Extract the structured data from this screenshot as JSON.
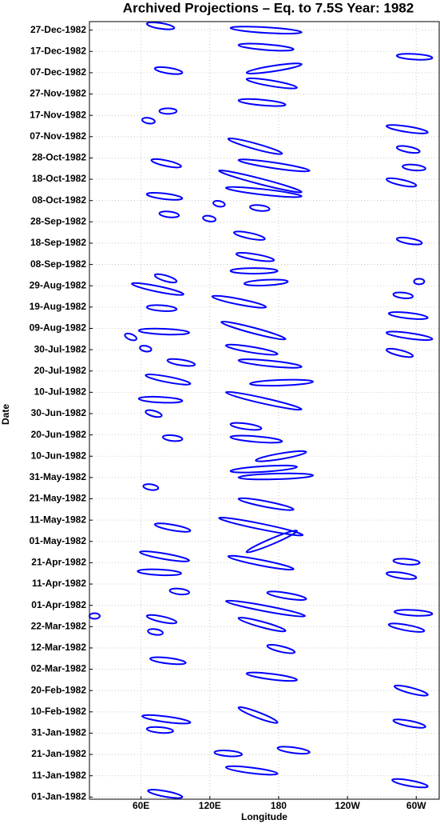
{
  "chart_data": {
    "type": "contour",
    "title": "Archived Projections – Eq. to 7.5S Year: 1982",
    "xlabel": "Longitude",
    "ylabel": "Date",
    "color": "#0000ff",
    "grid": true,
    "xlim": [
      15,
      320
    ],
    "xticks": [
      {
        "value": 60,
        "label": "60E"
      },
      {
        "value": 120,
        "label": "120E"
      },
      180,
      {
        "value": 240,
        "label": "120W"
      },
      {
        "value": 300,
        "label": "60W"
      }
    ],
    "ylim": [
      -1,
      364
    ],
    "yticks": [
      {
        "value": 0,
        "label": "01-Jan-1982"
      },
      {
        "value": 10,
        "label": "11-Jan-1982"
      },
      {
        "value": 20,
        "label": "21-Jan-1982"
      },
      {
        "value": 30,
        "label": "31-Jan-1982"
      },
      {
        "value": 40,
        "label": "10-Feb-1982"
      },
      {
        "value": 50,
        "label": "20-Feb-1982"
      },
      {
        "value": 60,
        "label": "02-Mar-1982"
      },
      {
        "value": 70,
        "label": "12-Mar-1982"
      },
      {
        "value": 80,
        "label": "22-Mar-1982"
      },
      {
        "value": 90,
        "label": "01-Apr-1982"
      },
      {
        "value": 100,
        "label": "11-Apr-1982"
      },
      {
        "value": 110,
        "label": "21-Apr-1982"
      },
      {
        "value": 120,
        "label": "01-May-1982"
      },
      {
        "value": 130,
        "label": "11-May-1982"
      },
      {
        "value": 140,
        "label": "21-May-1982"
      },
      {
        "value": 150,
        "label": "31-May-1982"
      },
      {
        "value": 160,
        "label": "10-Jun-1982"
      },
      {
        "value": 170,
        "label": "20-Jun-1982"
      },
      {
        "value": 180,
        "label": "30-Jun-1982"
      },
      {
        "value": 190,
        "label": "10-Jul-1982"
      },
      {
        "value": 200,
        "label": "20-Jul-1982"
      },
      {
        "value": 210,
        "label": "30-Jul-1982"
      },
      {
        "value": 220,
        "label": "09-Aug-1982"
      },
      {
        "value": 230,
        "label": "19-Aug-1982"
      },
      {
        "value": 240,
        "label": "29-Aug-1982"
      },
      {
        "value": 250,
        "label": "08-Sep-1982"
      },
      {
        "value": 260,
        "label": "18-Sep-1982"
      },
      {
        "value": 270,
        "label": "28-Sep-1982"
      },
      {
        "value": 280,
        "label": "08-Oct-1982"
      },
      {
        "value": 290,
        "label": "18-Oct-1982"
      },
      {
        "value": 300,
        "label": "28-Oct-1982"
      },
      {
        "value": 310,
        "label": "07-Nov-1982"
      },
      {
        "value": 320,
        "label": "17-Nov-1982"
      },
      {
        "value": 330,
        "label": "27-Nov-1982"
      },
      {
        "value": 340,
        "label": "07-Dec-1982"
      },
      {
        "value": 350,
        "label": "17-Dec-1982"
      },
      {
        "value": 360,
        "label": "27-Dec-1982"
      }
    ],
    "contours": [
      {
        "x0": 65,
        "y0": 363,
        "x1": 89,
        "y1": 361
      },
      {
        "x0": 138,
        "y0": 361,
        "x1": 200,
        "y1": 359
      },
      {
        "x0": 145,
        "y0": 353,
        "x1": 193,
        "y1": 351
      },
      {
        "x0": 283,
        "y0": 348,
        "x1": 314,
        "y1": 347
      },
      {
        "x0": 72,
        "y0": 342,
        "x1": 96,
        "y1": 340
      },
      {
        "x0": 152,
        "y0": 340,
        "x1": 200,
        "y1": 344
      },
      {
        "x0": 152,
        "y0": 337,
        "x1": 196,
        "y1": 333
      },
      {
        "x0": 145,
        "y0": 327,
        "x1": 186,
        "y1": 325
      },
      {
        "x0": 76,
        "y0": 322,
        "x1": 91,
        "y1": 322
      },
      {
        "x0": 61,
        "y0": 318,
        "x1": 72,
        "y1": 317
      },
      {
        "x0": 274,
        "y0": 315,
        "x1": 310,
        "y1": 312
      },
      {
        "x0": 136,
        "y0": 309,
        "x1": 183,
        "y1": 302
      },
      {
        "x0": 283,
        "y0": 305,
        "x1": 303,
        "y1": 303
      },
      {
        "x0": 69,
        "y0": 299,
        "x1": 95,
        "y1": 296
      },
      {
        "x0": 145,
        "y0": 299,
        "x1": 207,
        "y1": 294
      },
      {
        "x0": 288,
        "y0": 296,
        "x1": 308,
        "y1": 295
      },
      {
        "x0": 128,
        "y0": 294,
        "x1": 200,
        "y1": 284
      },
      {
        "x0": 274,
        "y0": 290,
        "x1": 300,
        "y1": 287
      },
      {
        "x0": 134,
        "y0": 286,
        "x1": 200,
        "y1": 282
      },
      {
        "x0": 65,
        "y0": 283,
        "x1": 96,
        "y1": 281
      },
      {
        "x0": 123,
        "y0": 279,
        "x1": 133,
        "y1": 278
      },
      {
        "x0": 155,
        "y0": 277,
        "x1": 172,
        "y1": 276
      },
      {
        "x0": 76,
        "y0": 274,
        "x1": 93,
        "y1": 273
      },
      {
        "x0": 114,
        "y0": 272,
        "x1": 125,
        "y1": 271
      },
      {
        "x0": 141,
        "y0": 265,
        "x1": 168,
        "y1": 262
      },
      {
        "x0": 283,
        "y0": 262,
        "x1": 305,
        "y1": 260
      },
      {
        "x0": 143,
        "y0": 255,
        "x1": 176,
        "y1": 252
      },
      {
        "x0": 138,
        "y0": 247,
        "x1": 179,
        "y1": 247
      },
      {
        "x0": 72,
        "y0": 245,
        "x1": 91,
        "y1": 242
      },
      {
        "x0": 52,
        "y0": 241,
        "x1": 97,
        "y1": 236
      },
      {
        "x0": 150,
        "y0": 241,
        "x1": 188,
        "y1": 242
      },
      {
        "x0": 298,
        "y0": 242,
        "x1": 307,
        "y1": 242
      },
      {
        "x0": 122,
        "y0": 235,
        "x1": 169,
        "y1": 230
      },
      {
        "x0": 280,
        "y0": 236,
        "x1": 297,
        "y1": 235
      },
      {
        "x0": 65,
        "y0": 230,
        "x1": 91,
        "y1": 229
      },
      {
        "x0": 276,
        "y0": 227,
        "x1": 310,
        "y1": 225
      },
      {
        "x0": 130,
        "y0": 223,
        "x1": 186,
        "y1": 215
      },
      {
        "x0": 58,
        "y0": 219,
        "x1": 102,
        "y1": 218
      },
      {
        "x0": 274,
        "y0": 218,
        "x1": 314,
        "y1": 215
      },
      {
        "x0": 46,
        "y0": 217,
        "x1": 56,
        "y1": 215
      },
      {
        "x0": 134,
        "y0": 212,
        "x1": 179,
        "y1": 208
      },
      {
        "x0": 59,
        "y0": 211,
        "x1": 69,
        "y1": 210
      },
      {
        "x0": 274,
        "y0": 210,
        "x1": 297,
        "y1": 207
      },
      {
        "x0": 145,
        "y0": 205,
        "x1": 200,
        "y1": 202
      },
      {
        "x0": 83,
        "y0": 205,
        "x1": 107,
        "y1": 203
      },
      {
        "x0": 64,
        "y0": 198,
        "x1": 103,
        "y1": 194
      },
      {
        "x0": 134,
        "y0": 190,
        "x1": 200,
        "y1": 182
      },
      {
        "x0": 155,
        "y0": 194,
        "x1": 210,
        "y1": 195
      },
      {
        "x0": 58,
        "y0": 187,
        "x1": 96,
        "y1": 186
      },
      {
        "x0": 64,
        "y0": 181,
        "x1": 78,
        "y1": 179
      },
      {
        "x0": 138,
        "y0": 175,
        "x1": 165,
        "y1": 173
      },
      {
        "x0": 138,
        "y0": 169,
        "x1": 183,
        "y1": 167
      },
      {
        "x0": 79,
        "y0": 169,
        "x1": 96,
        "y1": 168
      },
      {
        "x0": 160,
        "y0": 158,
        "x1": 204,
        "y1": 162
      },
      {
        "x0": 138,
        "y0": 153,
        "x1": 196,
        "y1": 155
      },
      {
        "x0": 145,
        "y0": 150,
        "x1": 210,
        "y1": 151
      },
      {
        "x0": 145,
        "y0": 140,
        "x1": 193,
        "y1": 135
      },
      {
        "x0": 62,
        "y0": 146,
        "x1": 75,
        "y1": 145
      },
      {
        "x0": 128,
        "y0": 131,
        "x1": 201,
        "y1": 123
      },
      {
        "x0": 72,
        "y0": 128,
        "x1": 103,
        "y1": 125
      },
      {
        "x0": 152,
        "y0": 115,
        "x1": 196,
        "y1": 125
      },
      {
        "x0": 59,
        "y0": 115,
        "x1": 102,
        "y1": 111
      },
      {
        "x0": 136,
        "y0": 113,
        "x1": 193,
        "y1": 107
      },
      {
        "x0": 57,
        "y0": 106,
        "x1": 95,
        "y1": 105
      },
      {
        "x0": 280,
        "y0": 111,
        "x1": 303,
        "y1": 110
      },
      {
        "x0": 274,
        "y0": 105,
        "x1": 300,
        "y1": 103
      },
      {
        "x0": 85,
        "y0": 97,
        "x1": 102,
        "y1": 96
      },
      {
        "x0": 170,
        "y0": 96,
        "x1": 204,
        "y1": 93
      },
      {
        "x0": 134,
        "y0": 92,
        "x1": 203,
        "y1": 85
      },
      {
        "x0": 65,
        "y0": 85,
        "x1": 91,
        "y1": 82
      },
      {
        "x0": 281,
        "y0": 87,
        "x1": 314,
        "y1": 86
      },
      {
        "x0": 145,
        "y0": 84,
        "x1": 186,
        "y1": 78
      },
      {
        "x0": 276,
        "y0": 81,
        "x1": 307,
        "y1": 78
      },
      {
        "x0": 66,
        "y0": 78,
        "x1": 79,
        "y1": 77
      },
      {
        "x0": 170,
        "y0": 71,
        "x1": 194,
        "y1": 68
      },
      {
        "x0": 68,
        "y0": 65,
        "x1": 99,
        "y1": 63
      },
      {
        "x0": 152,
        "y0": 58,
        "x1": 196,
        "y1": 55
      },
      {
        "x0": 281,
        "y0": 52,
        "x1": 310,
        "y1": 48
      },
      {
        "x0": 145,
        "y0": 42,
        "x1": 179,
        "y1": 35
      },
      {
        "x0": 280,
        "y0": 36,
        "x1": 308,
        "y1": 33
      },
      {
        "x0": 61,
        "y0": 38,
        "x1": 103,
        "y1": 35
      },
      {
        "x0": 65,
        "y0": 32,
        "x1": 88,
        "y1": 31
      },
      {
        "x0": 124,
        "y0": 21,
        "x1": 148,
        "y1": 20
      },
      {
        "x0": 179,
        "y0": 23,
        "x1": 207,
        "y1": 21
      },
      {
        "x0": 134,
        "y0": 14,
        "x1": 179,
        "y1": 11
      },
      {
        "x0": 279,
        "y0": 8,
        "x1": 310,
        "y1": 5
      },
      {
        "x0": 66,
        "y0": 3,
        "x1": 96,
        "y1": 0
      },
      {
        "x0": 15,
        "y0": 85,
        "x1": 24,
        "y1": 85
      }
    ]
  }
}
